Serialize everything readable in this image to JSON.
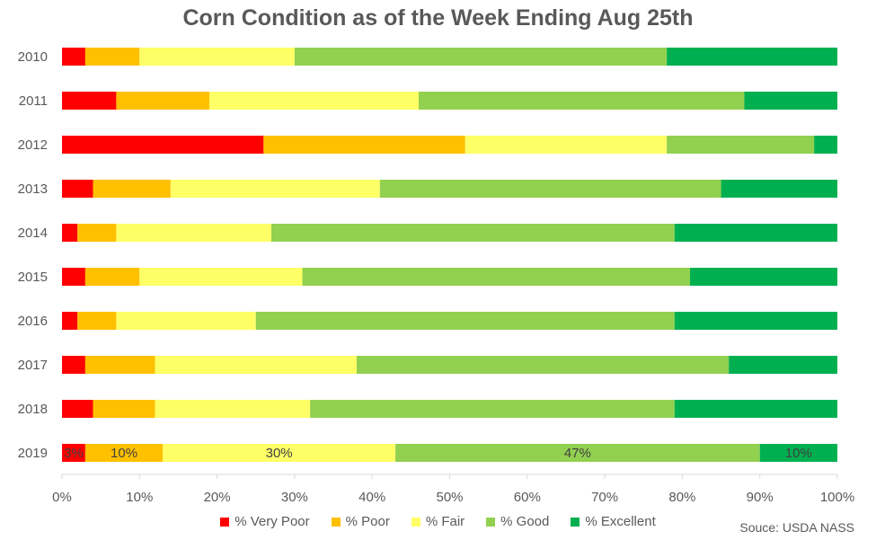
{
  "chart_data": {
    "type": "bar",
    "orientation": "horizontal-stacked-100",
    "title": "Corn Condition as of the Week Ending Aug 25th",
    "categories": [
      "2010",
      "2011",
      "2012",
      "2013",
      "2014",
      "2015",
      "2016",
      "2017",
      "2018",
      "2019"
    ],
    "series": [
      {
        "name": "% Very Poor",
        "color": "#ff0000",
        "values": [
          3,
          7,
          26,
          4,
          2,
          3,
          2,
          3,
          4,
          3
        ]
      },
      {
        "name": "% Poor",
        "color": "#ffc000",
        "values": [
          7,
          12,
          26,
          10,
          5,
          7,
          5,
          9,
          8,
          10
        ]
      },
      {
        "name": "% Fair",
        "color": "#ffff66",
        "values": [
          20,
          27,
          26,
          27,
          20,
          21,
          18,
          26,
          20,
          30
        ]
      },
      {
        "name": "% Good",
        "color": "#92d050",
        "values": [
          48,
          42,
          19,
          44,
          52,
          50,
          54,
          48,
          47,
          47
        ]
      },
      {
        "name": "% Excellent",
        "color": "#00b050",
        "values": [
          22,
          12,
          3,
          15,
          21,
          19,
          21,
          14,
          21,
          10
        ]
      }
    ],
    "data_labels": {
      "category": "2019",
      "labels": [
        "3%",
        "10%",
        "30%",
        "47%",
        "10%"
      ]
    },
    "x_ticks": [
      "0%",
      "10%",
      "20%",
      "30%",
      "40%",
      "50%",
      "60%",
      "70%",
      "80%",
      "90%",
      "100%"
    ],
    "xlim": [
      0,
      100
    ],
    "grid": false,
    "legend_position": "bottom"
  },
  "source_note": "Souce: USDA NASS"
}
